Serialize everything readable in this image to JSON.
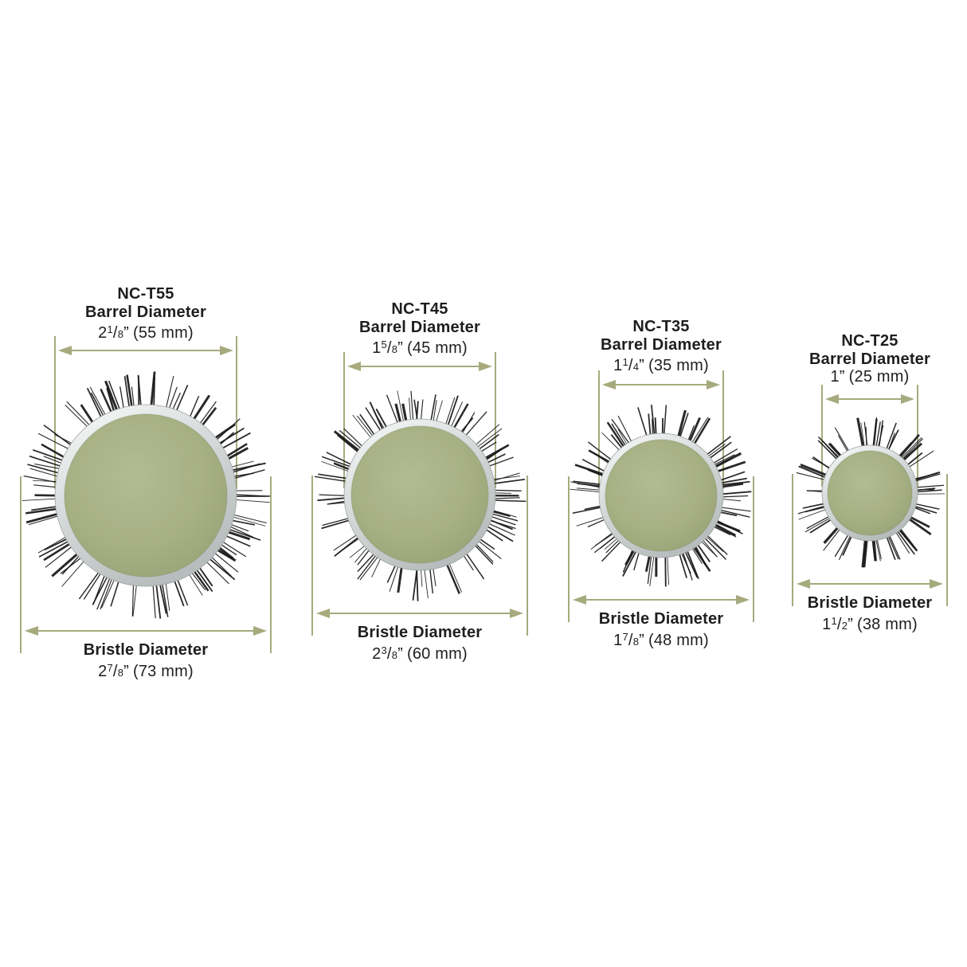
{
  "diagram": {
    "title": "Round brush barrel and bristle diameter comparison",
    "colors": {
      "background": "#ffffff",
      "dimension_line": "#a6aa7d",
      "text": "#1e1e1e",
      "barrel_green_center": "#b3bb92",
      "barrel_green": "#a7b083",
      "barrel_green_edge": "#99a276",
      "rim_silver_light": "#fdfdfd",
      "rim_silver_mid": "#d8dcdc",
      "rim_silver_dark": "#b7bcbd",
      "bristle_black": "#161616"
    },
    "brushes": [
      {
        "model": "NC-T55",
        "barrel": {
          "label": "Barrel Diameter",
          "whole": "2",
          "fraction": "1/8",
          "inch_mark": "”",
          "metric": "(55 mm)"
        },
        "bristle": {
          "label": "Bristle Diameter",
          "whole": "2",
          "fraction": "7/8",
          "inch_mark": "”",
          "metric": "(73 mm)"
        }
      },
      {
        "model": "NC-T45",
        "barrel": {
          "label": "Barrel Diameter",
          "whole": "1",
          "fraction": "5/8",
          "inch_mark": "”",
          "metric": "(45 mm)"
        },
        "bristle": {
          "label": "Bristle Diameter",
          "whole": "2",
          "fraction": "3/8",
          "inch_mark": "”",
          "metric": "(60 mm)"
        }
      },
      {
        "model": "NC-T35",
        "barrel": {
          "label": "Barrel Diameter",
          "whole": "1",
          "fraction": "1/4",
          "inch_mark": "”",
          "metric": "(35 mm)"
        },
        "bristle": {
          "label": "Bristle Diameter",
          "whole": "1",
          "fraction": "7/8",
          "inch_mark": "”",
          "metric": "(48 mm)"
        }
      },
      {
        "model": "NC-T25",
        "barrel": {
          "label": "Barrel Diameter",
          "whole": "1",
          "fraction": "",
          "inch_mark": "”",
          "metric": "(25 mm)"
        },
        "bristle": {
          "label": "Bristle Diameter",
          "whole": "1",
          "fraction": "1/2",
          "inch_mark": "”",
          "metric": "(38 mm)"
        }
      }
    ]
  }
}
